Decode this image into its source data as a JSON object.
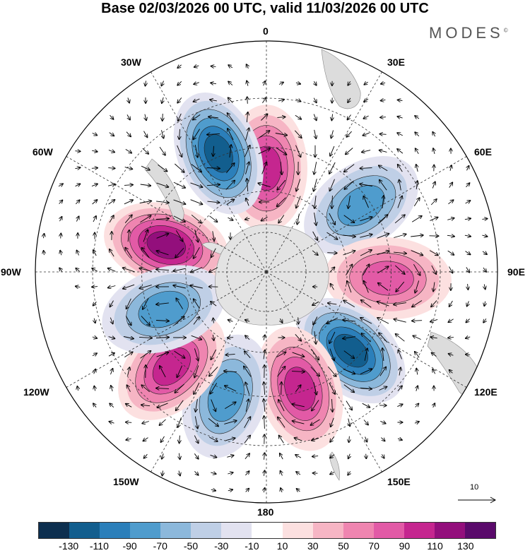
{
  "title": "Base 02/03/2026 00 UTC, valid 11/03/2026 00 UTC",
  "brand": "MODES",
  "brand_mark": "©",
  "longitude_labels": {
    "lon_0": "0",
    "lon_30e": "30E",
    "lon_60e": "60E",
    "lon_90e": "90E",
    "lon_120e": "120E",
    "lon_150e": "150E",
    "lon_180": "180",
    "lon_150w": "150W",
    "lon_120w": "120W",
    "lon_90w": "90W",
    "lon_60w": "60W",
    "lon_30w": "30W"
  },
  "reference_vector": "10",
  "colorbar": {
    "colors": [
      "#0d2f4f",
      "#125e8e",
      "#2b7fba",
      "#4f9ccd",
      "#8cb8db",
      "#bfcfe6",
      "#e2e2f0",
      "#ffffff",
      "#fce0e0",
      "#f6b5c4",
      "#ef85b0",
      "#e25aa6",
      "#c5268f",
      "#930f7c",
      "#5a0a6b"
    ],
    "tick_labels": [
      "-130",
      "-110",
      "-90",
      "-70",
      "-50",
      "-30",
      "-10",
      "10",
      "30",
      "50",
      "70",
      "90",
      "110",
      "130"
    ]
  },
  "anomaly_centers": [
    {
      "lon": -75,
      "lat": -52,
      "value": 118
    },
    {
      "lon": 0,
      "lat": -52,
      "value": 100
    },
    {
      "lon": -22,
      "lat": -44,
      "value": -122
    },
    {
      "lon": 55,
      "lat": -48,
      "value": -75
    },
    {
      "lon": 93,
      "lat": -46,
      "value": 75
    },
    {
      "lon": 133,
      "lat": -48,
      "value": -115
    },
    {
      "lon": 164,
      "lat": -46,
      "value": 95
    },
    {
      "lon": -162,
      "lat": -43,
      "value": -72
    },
    {
      "lon": -135,
      "lat": -42,
      "value": 95
    },
    {
      "lon": -110,
      "lat": -50,
      "value": -78
    }
  ]
}
